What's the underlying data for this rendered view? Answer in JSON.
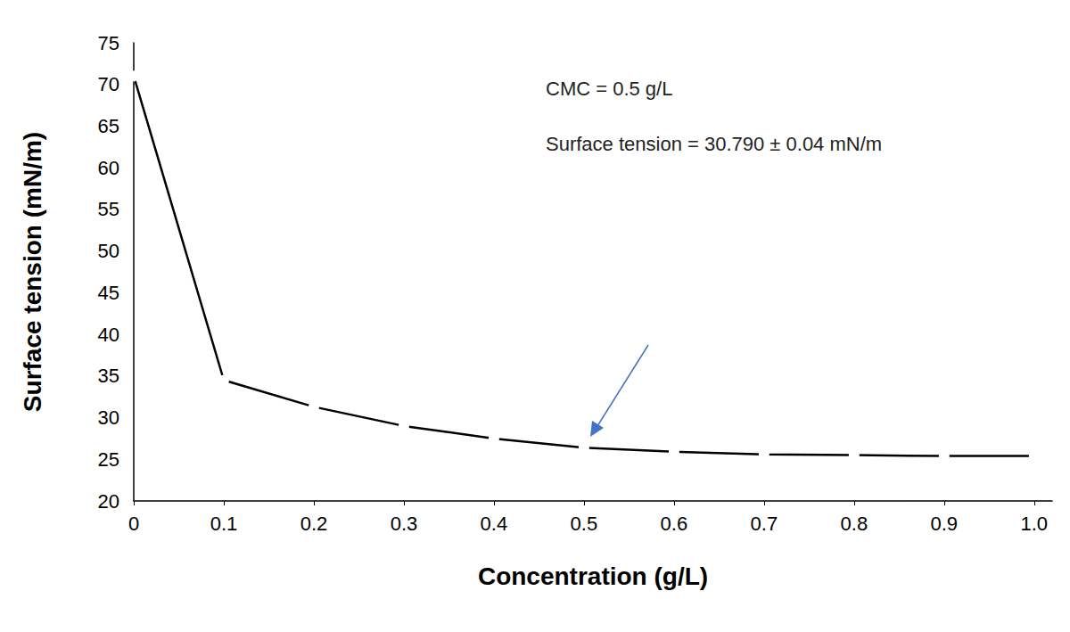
{
  "chart_data": {
    "type": "line",
    "x_label": "Concentration (g/L)",
    "y_label": "Surface tension (mN/m)",
    "annotations": [
      "CMC = 0.5 g/L",
      "Surface tension = 30.790 ± 0.04 mN/m"
    ],
    "x": [
      0,
      0.1,
      0.2,
      0.3,
      0.4,
      0.5,
      0.6,
      0.7,
      0.8,
      0.9,
      1.0
    ],
    "values": [
      71,
      34.5,
      31.3,
      29,
      27.5,
      26.4,
      25.9,
      25.6,
      25.5,
      25.4,
      25.4
    ],
    "color": "#000000",
    "marker": "emptyCircle",
    "xlim": [
      0,
      1.02
    ],
    "xticks": [
      0,
      0.1,
      0.2,
      0.3,
      0.4,
      0.5,
      0.6,
      0.7,
      0.8,
      0.9,
      {
        "value": 1,
        "label": "1.0"
      }
    ],
    "ylim": [
      20,
      75
    ],
    "yticks": [
      20,
      25,
      30,
      35,
      40,
      45,
      50,
      55,
      60,
      65,
      70,
      75
    ],
    "grid": false
  }
}
